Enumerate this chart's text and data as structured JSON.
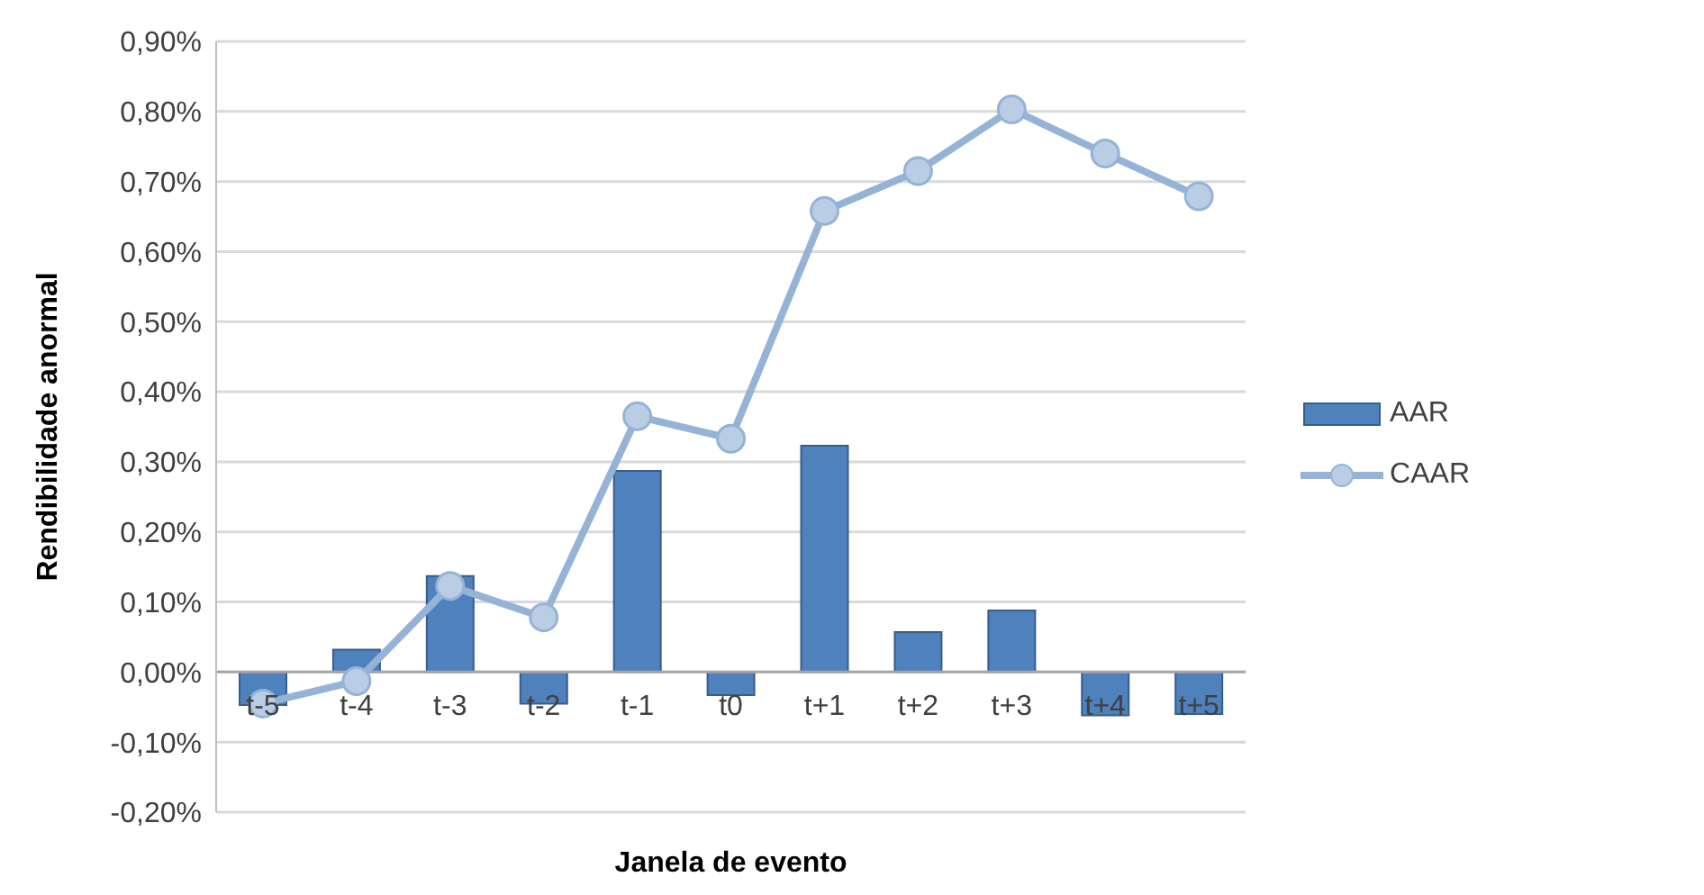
{
  "chart_data": {
    "type": "bar",
    "xlabel": "Janela de evento",
    "ylabel": "Rendibilidade anormal",
    "categories": [
      "t-5",
      "t-4",
      "t-3",
      "t-2",
      "t-1",
      "t0",
      "t+1",
      "t+2",
      "t+3",
      "t+4",
      "t+5"
    ],
    "series": [
      {
        "name": "AAR",
        "color": "#4f81bd",
        "values": [
          -0.047,
          0.032,
          0.137,
          -0.045,
          0.287,
          -0.033,
          0.323,
          0.057,
          0.088,
          -0.062,
          -0.06
        ]
      },
      {
        "name": "CAAR",
        "type": "line",
        "color": "#95b3d7",
        "values": [
          -0.045,
          -0.013,
          0.123,
          0.078,
          0.365,
          0.333,
          0.658,
          0.715,
          0.803,
          0.74,
          0.679
        ]
      }
    ],
    "ylim": [
      -0.2,
      0.9
    ],
    "yticks": [
      {
        "value": -0.2,
        "label": "-0,20%"
      },
      {
        "value": -0.1,
        "label": "-0,10%"
      },
      {
        "value": 0,
        "label": "0,00%"
      },
      {
        "value": 0.1,
        "label": "0,10%"
      },
      {
        "value": 0.2,
        "label": "0,20%"
      },
      {
        "value": 0.3,
        "label": "0,30%"
      },
      {
        "value": 0.4,
        "label": "0,40%"
      },
      {
        "value": 0.5,
        "label": "0,50%"
      },
      {
        "value": 0.6,
        "label": "0,60%"
      },
      {
        "value": 0.7,
        "label": "0,70%"
      },
      {
        "value": 0.8,
        "label": "0,80%"
      },
      {
        "value": 0.9,
        "label": "0,90%"
      }
    ],
    "grid": "y",
    "legend": "right",
    "marker": "circle",
    "line_style": "solid"
  }
}
